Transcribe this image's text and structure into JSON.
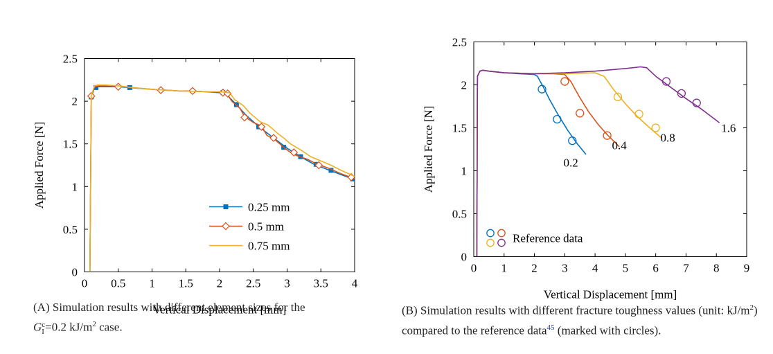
{
  "figures": [
    {
      "caption_label": "(A)",
      "caption_text": "Simulation results with different element sizes for the",
      "caption_formula_text": "=0.2 kJ/m",
      "caption_formula_sup": "2",
      "caption_formula_tail": " case.",
      "caption_symbol": "G",
      "caption_symbol_sup": "c",
      "caption_symbol_sub": "I"
    },
    {
      "caption_label": "(B)",
      "caption_text_1": "Simulation results with different fracture toughness values (unit: kJ/m",
      "caption_text_sup": "2",
      "caption_text_2": ") compared to the reference data",
      "caption_ref": "45",
      "caption_text_3": " (marked with circles)."
    }
  ],
  "chart_data": [
    {
      "type": "line",
      "xlabel": "Vertical Displacement [mm]",
      "ylabel": "Applied Force [N]",
      "xlim": [
        0,
        4
      ],
      "ylim": [
        0,
        2.5
      ],
      "xticks": [
        "0",
        "0.5",
        "1",
        "1.5",
        "2",
        "2.5",
        "3",
        "3.5",
        "4"
      ],
      "yticks": [
        "0",
        "0.5",
        "1",
        "1.5",
        "2",
        "2.5"
      ],
      "grid": false,
      "legend_position": "bottom-right",
      "series": [
        {
          "name": "0.25 mm",
          "color": "#0072BD",
          "marker": "square",
          "x": [
            0.08,
            0.1,
            0.15,
            0.2,
            0.3,
            0.4,
            0.5,
            0.67,
            0.8,
            1.0,
            1.2,
            1.4,
            1.6,
            1.8,
            2.0,
            2.1,
            2.25,
            2.4,
            2.6,
            2.8,
            3.0,
            3.2,
            3.4,
            3.6,
            3.8,
            4.0
          ],
          "y": [
            0.0,
            2.05,
            2.16,
            2.17,
            2.17,
            2.17,
            2.17,
            2.16,
            2.15,
            2.14,
            2.13,
            2.12,
            2.12,
            2.11,
            2.1,
            2.08,
            1.96,
            1.83,
            1.69,
            1.57,
            1.45,
            1.35,
            1.26,
            1.2,
            1.14,
            1.08
          ],
          "marker_x": [
            0.1,
            0.17,
            0.67,
            2.05,
            2.25,
            2.58,
            2.95,
            3.2,
            3.43,
            3.65,
            3.97
          ],
          "marker_y": [
            2.05,
            2.16,
            2.16,
            2.1,
            1.96,
            1.7,
            1.46,
            1.35,
            1.26,
            1.19,
            1.09
          ]
        },
        {
          "name": "0.5 mm",
          "color": "#D95319",
          "marker": "diamond",
          "x": [
            0.08,
            0.1,
            0.15,
            0.2,
            0.3,
            0.5,
            0.7,
            1.0,
            1.15,
            1.4,
            1.6,
            1.8,
            2.0,
            2.1,
            2.18,
            2.3,
            2.37,
            2.5,
            2.62,
            2.7,
            2.82,
            2.95,
            3.05,
            3.15,
            3.3,
            3.45,
            3.6,
            3.8,
            4.0
          ],
          "y": [
            0.0,
            2.06,
            2.17,
            2.18,
            2.18,
            2.18,
            2.16,
            2.14,
            2.13,
            2.12,
            2.12,
            2.11,
            2.11,
            2.1,
            2.0,
            1.92,
            1.82,
            1.75,
            1.71,
            1.6,
            1.55,
            1.46,
            1.4,
            1.36,
            1.32,
            1.26,
            1.22,
            1.15,
            1.09
          ],
          "marker_x": [
            0.1,
            0.5,
            1.13,
            1.6,
            2.05,
            2.12,
            2.37,
            2.62,
            2.8,
            3.1,
            3.47,
            3.95
          ],
          "marker_y": [
            2.06,
            2.17,
            2.13,
            2.12,
            2.1,
            2.09,
            1.81,
            1.7,
            1.57,
            1.4,
            1.25,
            1.11
          ]
        },
        {
          "name": "0.75 mm",
          "color": "#EDB120",
          "marker": "none",
          "x": [
            0.08,
            0.1,
            0.15,
            0.2,
            0.3,
            0.5,
            0.7,
            1.0,
            1.4,
            1.8,
            2.0,
            2.15,
            2.22,
            2.35,
            2.45,
            2.6,
            2.72,
            2.85,
            2.95,
            3.05,
            3.2,
            3.35,
            3.5,
            3.65,
            3.8,
            4.0
          ],
          "y": [
            0.0,
            2.07,
            2.18,
            2.19,
            2.19,
            2.18,
            2.16,
            2.14,
            2.12,
            2.11,
            2.11,
            2.1,
            2.02,
            1.95,
            1.86,
            1.76,
            1.72,
            1.63,
            1.57,
            1.5,
            1.43,
            1.35,
            1.3,
            1.25,
            1.19,
            1.12
          ]
        }
      ]
    },
    {
      "type": "line",
      "xlabel": "Vertical Displacement [mm]",
      "ylabel": "Applied Force [N]",
      "xlim": [
        0,
        9
      ],
      "ylim": [
        0,
        2.5
      ],
      "xticks": [
        "0",
        "1",
        "2",
        "3",
        "4",
        "5",
        "6",
        "7",
        "8",
        "9"
      ],
      "yticks": [
        "0",
        "0.5",
        "1",
        "1.5",
        "2",
        "2.5"
      ],
      "grid": false,
      "legend_position": "bottom-left",
      "legend_label": "Reference data",
      "series": [
        {
          "name": "0.2",
          "color": "#0072BD",
          "x": [
            0.1,
            0.12,
            0.2,
            0.3,
            0.5,
            1.0,
            1.5,
            2.0,
            2.1,
            2.3,
            2.5,
            2.8,
            3.1,
            3.4,
            3.7
          ],
          "y": [
            0.0,
            2.1,
            2.16,
            2.17,
            2.16,
            2.14,
            2.13,
            2.12,
            2.1,
            1.97,
            1.83,
            1.64,
            1.47,
            1.32,
            1.19
          ],
          "ref_x": [
            2.25,
            2.75,
            3.25
          ],
          "ref_y": [
            1.95,
            1.6,
            1.35
          ]
        },
        {
          "name": "0.4",
          "color": "#D95319",
          "x": [
            0.1,
            0.12,
            0.2,
            0.3,
            0.5,
            1.0,
            2.0,
            2.6,
            3.0,
            3.2,
            3.5,
            3.8,
            4.1,
            4.4,
            4.8
          ],
          "y": [
            0.0,
            2.1,
            2.16,
            2.17,
            2.16,
            2.14,
            2.13,
            2.13,
            2.12,
            2.04,
            1.85,
            1.68,
            1.54,
            1.42,
            1.28
          ],
          "ref_x": [
            3.0,
            3.5,
            4.4
          ],
          "ref_y": [
            2.04,
            1.67,
            1.41
          ]
        },
        {
          "name": "0.8",
          "color": "#EDB120",
          "x": [
            0.1,
            0.12,
            0.2,
            0.3,
            0.5,
            1.0,
            2.0,
            3.0,
            4.0,
            4.3,
            4.6,
            5.0,
            5.4,
            5.8,
            6.2
          ],
          "y": [
            0.0,
            2.1,
            2.16,
            2.17,
            2.16,
            2.14,
            2.13,
            2.13,
            2.14,
            2.1,
            1.95,
            1.78,
            1.63,
            1.5,
            1.38
          ],
          "ref_x": [
            4.75,
            5.45,
            6.0
          ],
          "ref_y": [
            1.86,
            1.66,
            1.5
          ]
        },
        {
          "name": "1.6",
          "color": "#7E2F8E",
          "x": [
            0.1,
            0.12,
            0.2,
            0.3,
            0.5,
            1.0,
            2.0,
            3.0,
            4.0,
            5.0,
            5.5,
            5.7,
            6.0,
            6.5,
            7.0,
            7.5,
            8.1
          ],
          "y": [
            0.0,
            2.1,
            2.16,
            2.17,
            2.16,
            2.14,
            2.13,
            2.14,
            2.16,
            2.19,
            2.21,
            2.2,
            2.1,
            1.97,
            1.84,
            1.72,
            1.56
          ],
          "ref_x": [
            6.35,
            6.85,
            7.35
          ],
          "ref_y": [
            2.04,
            1.9,
            1.79
          ]
        }
      ]
    }
  ]
}
